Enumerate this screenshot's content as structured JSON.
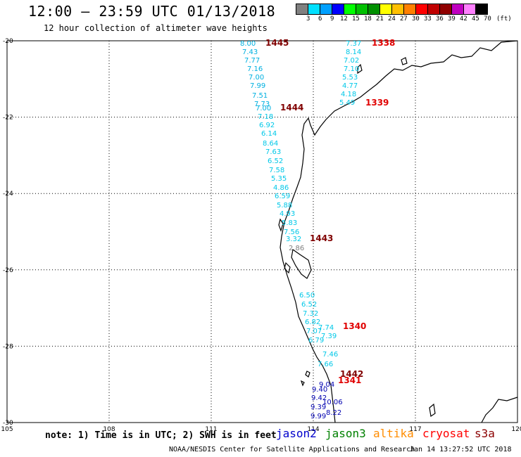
{
  "header": {
    "title": "12:00 – 23:59 UTC 01/13/2018",
    "subtitle": "12 hour collection of altimeter wave heights"
  },
  "legend": {
    "colors": [
      "#808080",
      "#00e0ff",
      "#00a0ff",
      "#0000ff",
      "#00ff00",
      "#00c000",
      "#009000",
      "#ffff00",
      "#ffc000",
      "#ff8000",
      "#ff0000",
      "#c00000",
      "#900000",
      "#c000c0",
      "#ff80ff",
      "#000000"
    ],
    "labels": [
      "3",
      "6",
      "9",
      "12",
      "15",
      "18",
      "21",
      "24",
      "27",
      "30",
      "33",
      "36",
      "39",
      "42",
      "45",
      "70",
      "(ft)"
    ]
  },
  "map": {
    "lat_labels": [
      "-20",
      "-22",
      "-24",
      "-26",
      "-28",
      "-30"
    ],
    "lon_labels": [
      "105",
      "108",
      "111",
      "114",
      "117",
      "120"
    ],
    "lat_values": [
      -20,
      -22,
      -24,
      -26,
      -28,
      -30
    ],
    "lon_values": [
      105,
      108,
      111,
      114,
      117,
      120
    ]
  },
  "tracks": {
    "pass_1445": {
      "pass_label": "1445",
      "values": [
        "8.00",
        "7.43",
        "7.77",
        "7.16",
        "7.00",
        "7.99",
        "7.51",
        "7.73",
        "7.00"
      ]
    },
    "pass_1444": {
      "pass_label": "1444",
      "values": [
        "7.18",
        "6.92",
        "6.14",
        "8.64",
        "7.63",
        "6.52",
        "7.58",
        "5.35",
        "4.86",
        "6.59",
        "5.88",
        "4.93",
        "5.83",
        "7.56",
        "3.32",
        "2.86"
      ]
    },
    "pass_1443": {
      "pass_label": "1443",
      "values": [
        "6.50",
        "6.52",
        "7.32",
        "6.82",
        "7.07",
        "6.79"
      ]
    },
    "pass_1442": {
      "pass_label": "1442",
      "values": [
        "9.04",
        "9.40",
        "9.42",
        "9.39",
        "9.99"
      ]
    },
    "pass_1338": {
      "pass_label": "1338",
      "values": [
        "7.37",
        "8.14",
        "7.02",
        "7.10",
        "5.53",
        "4.77",
        "4.18",
        "5.49"
      ]
    },
    "pass_1339": {
      "pass_label": "1339"
    },
    "pass_1340": {
      "pass_label": "1340",
      "values": [
        "7.74",
        "7.39",
        "7.46",
        "7.66"
      ]
    },
    "pass_1341": {
      "pass_label": "1341",
      "values": [
        "10.06",
        "8.22"
      ]
    }
  },
  "footer": {
    "note": "note: 1) Time is in UTC; 2) SWH is in feet",
    "satellites": [
      {
        "name": "jason2",
        "color": "#0000cc"
      },
      {
        "name": "jason3",
        "color": "#008000"
      },
      {
        "name": "altika",
        "color": "#ff8c00"
      },
      {
        "name": "cryosat",
        "color": "#ff0000"
      },
      {
        "name": "s3a",
        "color": "#8b0000"
      }
    ],
    "credit": "NOAA/NESDIS Center for Satellite Applications and Research",
    "timestamp": "Jan 14 13:27:52 UTC 2018"
  }
}
